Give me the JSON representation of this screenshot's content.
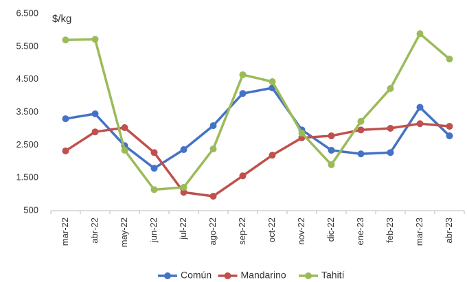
{
  "chart_data": {
    "type": "line",
    "annotations": [
      "$/kg"
    ],
    "categories": [
      "mar-22",
      "abr-22",
      "may-22",
      "jun-22",
      "jul-22",
      "ago-22",
      "sep-22",
      "oct-22",
      "nov-22",
      "dic-22",
      "ene-23",
      "feb-23",
      "mar-23",
      "abr-23"
    ],
    "series": [
      {
        "name": "Común",
        "color": "#4472c4",
        "values": [
          3300,
          3450,
          2480,
          1790,
          2360,
          3090,
          4070,
          4240,
          2960,
          2340,
          2230,
          2270,
          3650,
          2780
        ]
      },
      {
        "name": "Mandarino",
        "color": "#c0504d",
        "values": [
          2320,
          2900,
          3030,
          2270,
          1060,
          940,
          1560,
          2190,
          2720,
          2780,
          2960,
          3010,
          3150,
          3070
        ]
      },
      {
        "name": "Tahití",
        "color": "#9bbb59",
        "values": [
          5700,
          5720,
          2340,
          1140,
          1210,
          2380,
          4640,
          4430,
          2860,
          1900,
          3220,
          4220,
          5890,
          5120
        ]
      }
    ],
    "ylim": [
      500,
      6500
    ],
    "yticks": [
      {
        "value": 500,
        "label": "500"
      },
      {
        "value": 1500,
        "label": "1.500"
      },
      {
        "value": 2500,
        "label": "2.500"
      },
      {
        "value": 3500,
        "label": "3.500"
      },
      {
        "value": 4500,
        "label": "4.500"
      },
      {
        "value": 5500,
        "label": "5.500"
      },
      {
        "value": 6500,
        "label": "6.500"
      }
    ],
    "grid": false,
    "legend": "bottom"
  }
}
